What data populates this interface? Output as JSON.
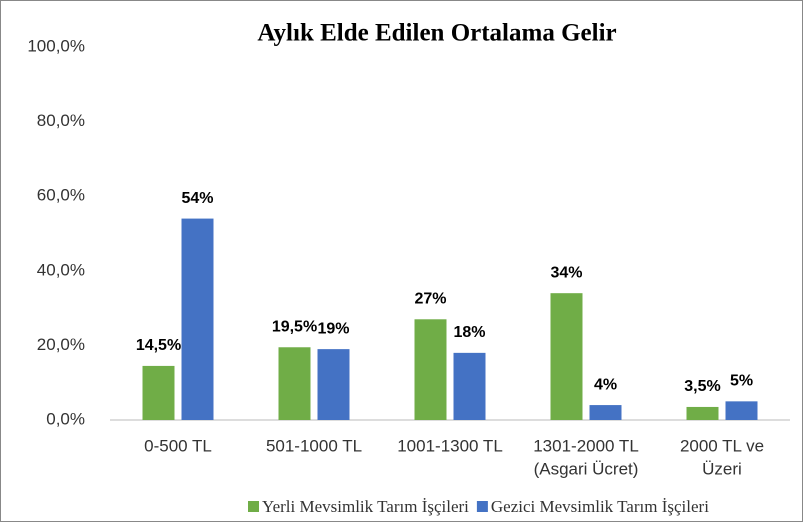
{
  "chart_data": {
    "type": "bar",
    "title": "Aylık Elde Edilen Ortalama Gelir",
    "categories": [
      [
        "0-500 TL"
      ],
      [
        "501-1000 TL"
      ],
      [
        "1001-1300 TL"
      ],
      [
        "1301-2000 TL",
        "(Asgari Ücret)"
      ],
      [
        "2000 TL ve",
        "Üzeri"
      ]
    ],
    "series": [
      {
        "name": "Yerli Mevsimlik Tarım İşçileri",
        "color": "#70ad47",
        "values": [
          14.5,
          19.5,
          27,
          34,
          3.5
        ],
        "value_labels": [
          "14,5%",
          "19,5%",
          "27%",
          "34%",
          "3,5%"
        ]
      },
      {
        "name": "Gezici Mevsimlik Tarım İşçileri",
        "color": "#4472c4",
        "values": [
          54,
          19,
          18,
          4,
          5
        ],
        "value_labels": [
          "54%",
          "19%",
          "18%",
          "4%",
          "5%"
        ]
      }
    ],
    "ylim": [
      0,
      100
    ],
    "yticks": [
      {
        "value": 0,
        "label": "0,0%"
      },
      {
        "value": 20,
        "label": "20,0%"
      },
      {
        "value": 40,
        "label": "40,0%"
      },
      {
        "value": 60,
        "label": "60,0%"
      },
      {
        "value": 80,
        "label": "80,0%"
      },
      {
        "value": 100,
        "label": "100,0%"
      }
    ],
    "grid": false,
    "legend": "bottom"
  }
}
